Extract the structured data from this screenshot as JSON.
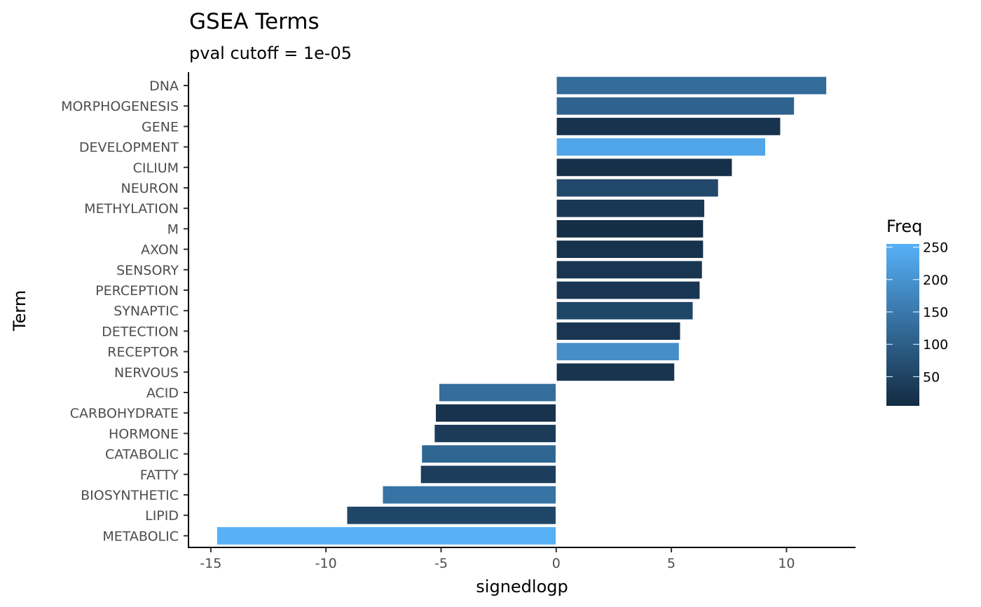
{
  "chart_data": {
    "type": "bar",
    "orientation": "horizontal",
    "title": "GSEA Terms",
    "subtitle": "pval cutoff = 1e-05",
    "xlabel": "signedlogp",
    "ylabel": "Term",
    "xlim": [
      -16,
      13
    ],
    "xticks": [
      -15,
      -10,
      -5,
      0,
      5,
      10
    ],
    "xtick_labels": [
      "-15",
      "-10",
      "-5",
      "0",
      "5",
      "10"
    ],
    "grid": false,
    "legend": {
      "title": "Freq",
      "position": "right",
      "type": "colorbar",
      "range": [
        5,
        255
      ],
      "ticks": [
        50,
        100,
        150,
        200,
        250
      ],
      "tick_labels": [
        "50",
        "100",
        "150",
        "200",
        "250"
      ],
      "color_low": "#132B43",
      "color_high": "#56B1F7"
    },
    "categories": [
      "DNA",
      "MORPHOGENESIS",
      "GENE",
      "DEVELOPMENT",
      "CILIUM",
      "NEURON",
      "METHYLATION",
      "M",
      "AXON",
      "SENSORY",
      "PERCEPTION",
      "SYNAPTIC",
      "DETECTION",
      "RECEPTOR",
      "NERVOUS",
      "ACID",
      "CARBOHYDRATE",
      "HORMONE",
      "CATABOLIC",
      "FATTY",
      "BIOSYNTHETIC",
      "LIPID",
      "METABOLIC"
    ],
    "values": [
      11.75,
      10.35,
      9.75,
      9.1,
      7.65,
      7.05,
      6.45,
      6.4,
      6.4,
      6.35,
      6.25,
      5.95,
      5.4,
      5.35,
      5.15,
      -5.1,
      -5.25,
      -5.3,
      -5.85,
      -5.9,
      -7.55,
      -9.1,
      -14.75
    ],
    "freq": [
      125,
      110,
      20,
      235,
      15,
      60,
      30,
      10,
      18,
      25,
      28,
      55,
      25,
      190,
      22,
      130,
      20,
      35,
      115,
      40,
      140,
      55,
      255
    ]
  }
}
